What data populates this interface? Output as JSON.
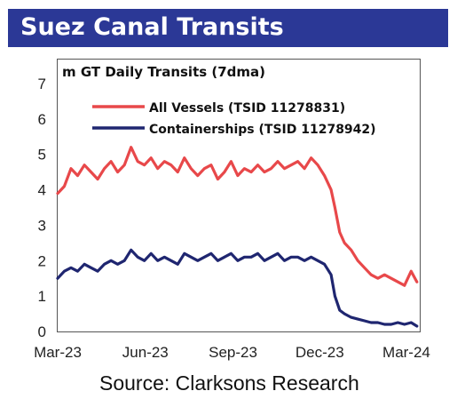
{
  "title": "Suez Canal Transits",
  "source": "Source: Clarksons Research",
  "colors": {
    "title_bar": "#2b3896",
    "all_vessels": "#e8484a",
    "containerships": "#1f2670",
    "axis": "#555555"
  },
  "chart_data": {
    "type": "line",
    "ylabel": "m GT Daily Transits (7dma)",
    "xlabel": "",
    "ylim": [
      0,
      7
    ],
    "yticks": [
      0,
      1,
      2,
      3,
      4,
      5,
      6,
      7
    ],
    "grid": false,
    "legend_position": "top-left",
    "x_tick_labels": [
      "Mar-23",
      "Jun-23",
      "Sep-23",
      "Dec-23",
      "Mar-24"
    ],
    "x_tick_dates": [
      "2023-03-01",
      "2023-06-01",
      "2023-09-01",
      "2023-12-01",
      "2024-03-01"
    ],
    "x_range": [
      "2023-03-01",
      "2024-03-15"
    ],
    "series": [
      {
        "name": "All Vessels (TSID 11278831)",
        "color": "#e8484a",
        "x": [
          "2023-03-01",
          "2023-03-08",
          "2023-03-15",
          "2023-03-22",
          "2023-03-29",
          "2023-04-05",
          "2023-04-12",
          "2023-04-19",
          "2023-04-26",
          "2023-05-03",
          "2023-05-10",
          "2023-05-17",
          "2023-05-24",
          "2023-05-31",
          "2023-06-07",
          "2023-06-14",
          "2023-06-21",
          "2023-06-28",
          "2023-07-05",
          "2023-07-12",
          "2023-07-19",
          "2023-07-26",
          "2023-08-02",
          "2023-08-09",
          "2023-08-16",
          "2023-08-23",
          "2023-08-30",
          "2023-09-06",
          "2023-09-13",
          "2023-09-20",
          "2023-09-27",
          "2023-10-04",
          "2023-10-11",
          "2023-10-18",
          "2023-10-25",
          "2023-11-01",
          "2023-11-08",
          "2023-11-15",
          "2023-11-22",
          "2023-11-29",
          "2023-12-06",
          "2023-12-13",
          "2023-12-17",
          "2023-12-22",
          "2023-12-27",
          "2024-01-03",
          "2024-01-10",
          "2024-01-17",
          "2024-01-24",
          "2024-01-31",
          "2024-02-07",
          "2024-02-14",
          "2024-02-21",
          "2024-02-28",
          "2024-03-06",
          "2024-03-12"
        ],
        "values": [
          3.9,
          4.1,
          4.6,
          4.4,
          4.7,
          4.5,
          4.3,
          4.6,
          4.8,
          4.5,
          4.7,
          5.2,
          4.8,
          4.7,
          4.9,
          4.6,
          4.8,
          4.7,
          4.5,
          4.9,
          4.6,
          4.4,
          4.6,
          4.7,
          4.3,
          4.5,
          4.8,
          4.4,
          4.6,
          4.5,
          4.7,
          4.5,
          4.6,
          4.8,
          4.6,
          4.7,
          4.8,
          4.6,
          4.9,
          4.7,
          4.4,
          4.0,
          3.5,
          2.8,
          2.5,
          2.3,
          2.0,
          1.8,
          1.6,
          1.5,
          1.6,
          1.5,
          1.4,
          1.3,
          1.7,
          1.4
        ]
      },
      {
        "name": "Containerships (TSID 11278942)",
        "color": "#1f2670",
        "x": [
          "2023-03-01",
          "2023-03-08",
          "2023-03-15",
          "2023-03-22",
          "2023-03-29",
          "2023-04-05",
          "2023-04-12",
          "2023-04-19",
          "2023-04-26",
          "2023-05-03",
          "2023-05-10",
          "2023-05-17",
          "2023-05-24",
          "2023-05-31",
          "2023-06-07",
          "2023-06-14",
          "2023-06-21",
          "2023-06-28",
          "2023-07-05",
          "2023-07-12",
          "2023-07-19",
          "2023-07-26",
          "2023-08-02",
          "2023-08-09",
          "2023-08-16",
          "2023-08-23",
          "2023-08-30",
          "2023-09-06",
          "2023-09-13",
          "2023-09-20",
          "2023-09-27",
          "2023-10-04",
          "2023-10-11",
          "2023-10-18",
          "2023-10-25",
          "2023-11-01",
          "2023-11-08",
          "2023-11-15",
          "2023-11-22",
          "2023-11-29",
          "2023-12-06",
          "2023-12-13",
          "2023-12-17",
          "2023-12-22",
          "2023-12-27",
          "2024-01-03",
          "2024-01-10",
          "2024-01-17",
          "2024-01-24",
          "2024-01-31",
          "2024-02-07",
          "2024-02-14",
          "2024-02-21",
          "2024-02-28",
          "2024-03-06",
          "2024-03-12"
        ],
        "values": [
          1.5,
          1.7,
          1.8,
          1.7,
          1.9,
          1.8,
          1.7,
          1.9,
          2.0,
          1.9,
          2.0,
          2.3,
          2.1,
          2.0,
          2.2,
          2.0,
          2.1,
          2.0,
          1.9,
          2.2,
          2.1,
          2.0,
          2.1,
          2.2,
          2.0,
          2.1,
          2.2,
          2.0,
          2.1,
          2.1,
          2.2,
          2.0,
          2.1,
          2.2,
          2.0,
          2.1,
          2.1,
          2.0,
          2.1,
          2.0,
          1.9,
          1.6,
          1.0,
          0.6,
          0.5,
          0.4,
          0.35,
          0.3,
          0.25,
          0.25,
          0.2,
          0.2,
          0.25,
          0.2,
          0.25,
          0.15
        ]
      }
    ]
  }
}
